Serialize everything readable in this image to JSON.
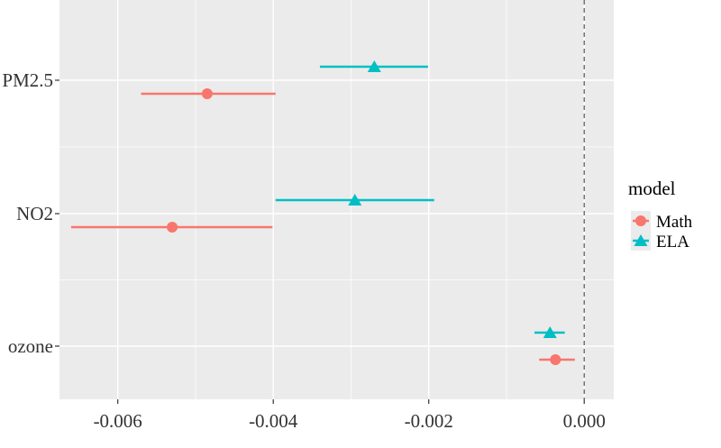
{
  "chart_data": {
    "type": "scatter",
    "subtype": "coefficient-plot-with-error-bars",
    "title": "",
    "xlabel": "",
    "ylabel": "",
    "categories": [
      "PM2.5",
      "NO2",
      "ozone"
    ],
    "xlim": [
      -0.00675,
      0.00038
    ],
    "x_ticks": [
      -0.006,
      -0.004,
      -0.002,
      0.0
    ],
    "x_tick_labels": [
      "-0.006",
      "-0.004",
      "-0.002",
      "0.000"
    ],
    "reference_line": {
      "x": 0,
      "style": "dashed"
    },
    "grid": true,
    "legend": {
      "title": "model",
      "position": "right"
    },
    "series": [
      {
        "name": "Math",
        "color": "#F8766D",
        "marker": "circle",
        "points": [
          {
            "category": "PM2.5",
            "estimate": -0.00485,
            "low": -0.0057,
            "high": -0.00397
          },
          {
            "category": "NO2",
            "estimate": -0.0053,
            "low": -0.0066,
            "high": -0.00401
          },
          {
            "category": "ozone",
            "estimate": -0.00037,
            "low": -0.00058,
            "high": -0.00012
          }
        ]
      },
      {
        "name": "ELA",
        "color": "#00BFC4",
        "marker": "triangle",
        "points": [
          {
            "category": "PM2.5",
            "estimate": -0.0027,
            "low": -0.0034,
            "high": -0.00201
          },
          {
            "category": "NO2",
            "estimate": -0.00295,
            "low": -0.00397,
            "high": -0.00193
          },
          {
            "category": "ozone",
            "estimate": -0.00044,
            "low": -0.00064,
            "high": -0.00025
          }
        ]
      }
    ]
  }
}
